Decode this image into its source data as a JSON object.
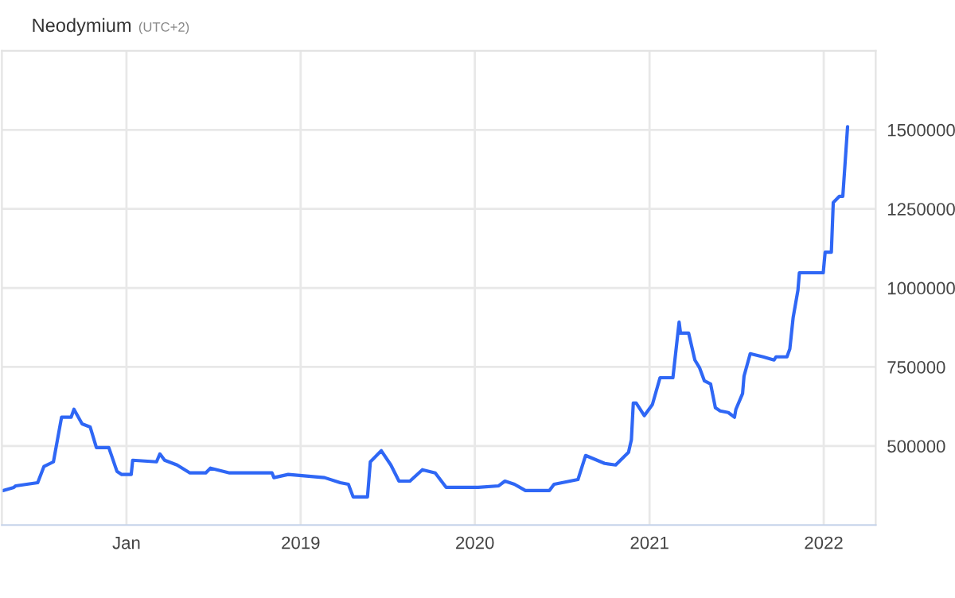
{
  "chart_data": {
    "type": "line",
    "title": "Neodymium",
    "subtitle": "(UTC+2)",
    "x": [
      "2017-04-17",
      "2017-05-10",
      "2017-05-14",
      "2017-06-29",
      "2017-07-12",
      "2017-08-01",
      "2017-08-18",
      "2017-09-07",
      "2017-09-13",
      "2017-09-30",
      "2017-10-17",
      "2017-10-30",
      "2017-11-25",
      "2017-12-12",
      "2017-12-22",
      "2018-01-11",
      "2018-01-14",
      "2018-03-05",
      "2018-03-12",
      "2018-03-22",
      "2018-04-17",
      "2018-05-14",
      "2018-06-16",
      "2018-06-26",
      "2018-08-05",
      "2018-11-02",
      "2018-11-06",
      "2018-12-06",
      "2019-02-20",
      "2019-03-25",
      "2019-04-11",
      "2019-04-21",
      "2019-05-21",
      "2019-05-27",
      "2019-06-19",
      "2019-07-09",
      "2019-07-26",
      "2019-08-18",
      "2019-09-13",
      "2019-10-10",
      "2019-11-02",
      "2019-12-15",
      "2020-01-08",
      "2020-02-20",
      "2020-03-04",
      "2020-03-24",
      "2020-04-16",
      "2020-06-05",
      "2020-06-15",
      "2020-08-04",
      "2020-08-20",
      "2020-09-29",
      "2020-10-22",
      "2020-11-18",
      "2020-11-24",
      "2020-11-28",
      "2020-12-04",
      "2020-12-21",
      "2021-01-07",
      "2021-01-23",
      "2021-02-19",
      "2021-03-04",
      "2021-03-07",
      "2021-03-24",
      "2021-04-06",
      "2021-04-16",
      "2021-04-26",
      "2021-05-09",
      "2021-05-19",
      "2021-05-29",
      "2021-06-15",
      "2021-06-28",
      "2021-07-01",
      "2021-07-15",
      "2021-07-18",
      "2021-07-31",
      "2021-08-27",
      "2021-09-19",
      "2021-09-23",
      "2021-10-16",
      "2021-10-22",
      "2021-10-29",
      "2021-11-08",
      "2021-11-11",
      "2021-12-31",
      "2022-01-04",
      "2022-01-17",
      "2022-01-21",
      "2022-02-03",
      "2022-02-10",
      "2022-02-20"
    ],
    "series": [
      {
        "color": "#2f67f5",
        "values": [
          359000,
          369000,
          374000,
          384000,
          435000,
          450000,
          591000,
          591000,
          616000,
          570000,
          560000,
          495000,
          495000,
          420000,
          410000,
          410000,
          455000,
          450000,
          475000,
          455000,
          440000,
          415000,
          415000,
          430000,
          415000,
          415000,
          400000,
          410000,
          400000,
          384000,
          379000,
          339000,
          339000,
          450000,
          485000,
          440000,
          389000,
          389000,
          425000,
          415000,
          369000,
          369000,
          369000,
          374000,
          389000,
          379000,
          359000,
          359000,
          379000,
          394000,
          470000,
          445000,
          440000,
          480000,
          520000,
          636000,
          636000,
          596000,
          631000,
          716000,
          716000,
          892000,
          857000,
          857000,
          772000,
          747000,
          706000,
          696000,
          621000,
          611000,
          606000,
          591000,
          616000,
          666000,
          721000,
          792000,
          782000,
          772000,
          782000,
          782000,
          807000,
          907000,
          993000,
          1048000,
          1048000,
          1113000,
          1113000,
          1270000,
          1290000,
          1290000,
          1510000
        ]
      }
    ],
    "xlim": [
      "2017-04-15",
      "2022-04-20"
    ],
    "xticks": [
      {
        "value": "2018-01-01",
        "label": "Jan"
      },
      {
        "value": "2019-01-01",
        "label": "2019"
      },
      {
        "value": "2020-01-01",
        "label": "2020"
      },
      {
        "value": "2021-01-01",
        "label": "2021"
      },
      {
        "value": "2022-01-01",
        "label": "2022"
      }
    ],
    "ylim": [
      250000,
      1750000
    ],
    "yticks": [
      500000,
      750000,
      1000000,
      1250000,
      1500000
    ],
    "grid": true,
    "legend": false,
    "marker": "none",
    "line_style": "solid"
  }
}
